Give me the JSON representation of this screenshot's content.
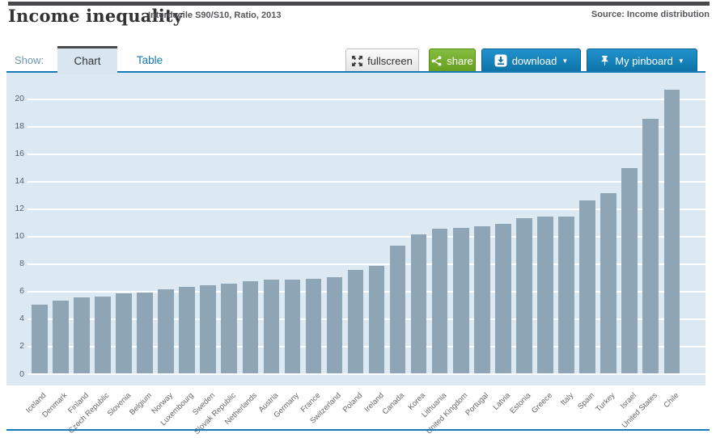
{
  "header": {
    "title": "Income inequality",
    "subtitle": "Interdecile S90/S10, Ratio, 2013",
    "source": "Source: Income distribution"
  },
  "toolbar": {
    "show_label": "Show:",
    "tabs": [
      {
        "label": "Chart",
        "active": true
      },
      {
        "label": "Table",
        "active": false
      }
    ],
    "buttons": [
      {
        "id": "fullscreen",
        "label": "fullscreen"
      },
      {
        "id": "share",
        "label": "share"
      },
      {
        "id": "download",
        "label": "download",
        "has_caret": true
      },
      {
        "id": "pinboard",
        "label": "My pinboard",
        "has_caret": true
      }
    ],
    "caret_glyph": "▼"
  },
  "colors": {
    "accent_blue": "#1779b5",
    "button_blue": "#0d73a7",
    "button_green": "#74ab2f",
    "panel_bg": "#dce9f2",
    "bar": "#8ea5b5",
    "grid": "#ffffff",
    "top_bar": "#48484a"
  },
  "chart_data": {
    "type": "bar",
    "title": "Income inequality",
    "subtitle": "Interdecile S90/S10, Ratio, 2013",
    "categories": [
      "Iceland",
      "Denmark",
      "Finland",
      "Czech Republic",
      "Slovenia",
      "Belgium",
      "Norway",
      "Luxembourg",
      "Sweden",
      "Slovak Republic",
      "Netherlands",
      "Austria",
      "Germany",
      "France",
      "Switzerland",
      "Poland",
      "Ireland",
      "Canada",
      "Korea",
      "Lithuania",
      "United Kingdom",
      "Portugal",
      "Latvia",
      "Estonia",
      "Greece",
      "Italy",
      "Spain",
      "Turkey",
      "Israel",
      "United States",
      "Chile"
    ],
    "values": [
      5.0,
      5.3,
      5.5,
      5.6,
      5.8,
      5.9,
      6.1,
      6.3,
      6.4,
      6.5,
      6.7,
      6.8,
      6.8,
      6.9,
      7.0,
      7.5,
      7.8,
      9.3,
      10.1,
      10.5,
      10.6,
      10.7,
      10.9,
      11.3,
      11.4,
      11.4,
      12.6,
      13.1,
      14.9,
      18.5,
      20.6
    ],
    "xlabel": "",
    "ylabel": "",
    "ylim": [
      0,
      20
    ],
    "ytick_step": 2,
    "grid": true,
    "legend": false,
    "bar_color": "#8ea5b5"
  }
}
